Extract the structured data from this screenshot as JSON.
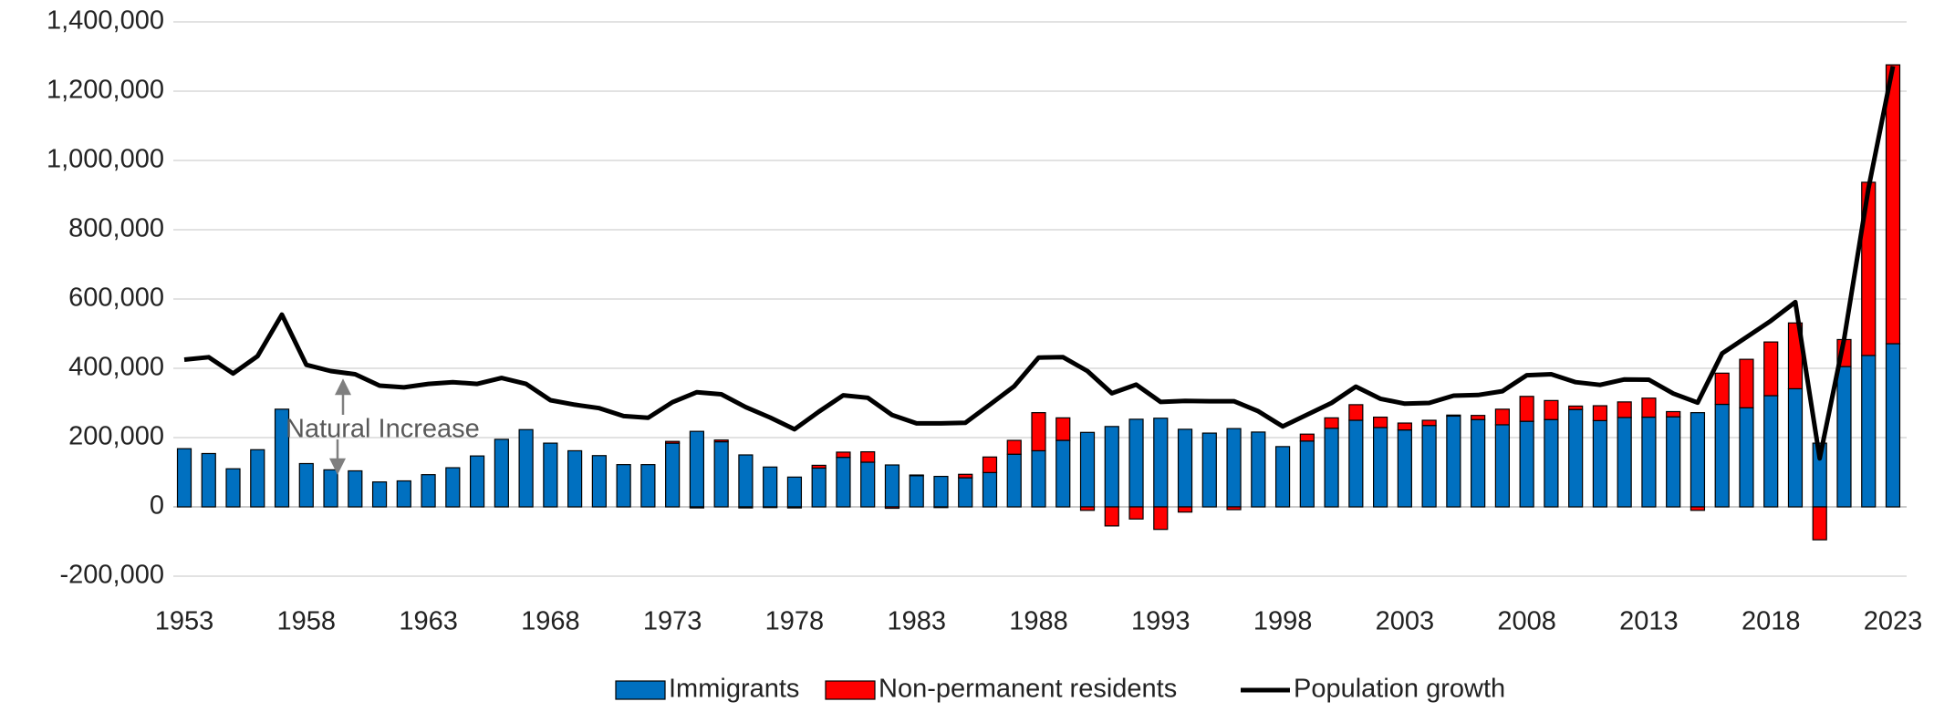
{
  "chart_data": {
    "type": "bar_line",
    "annotation": "Natural Increase",
    "x": [
      1953,
      1954,
      1955,
      1956,
      1957,
      1958,
      1959,
      1960,
      1961,
      1962,
      1963,
      1964,
      1965,
      1966,
      1967,
      1968,
      1969,
      1970,
      1971,
      1972,
      1973,
      1974,
      1975,
      1976,
      1977,
      1978,
      1979,
      1980,
      1981,
      1982,
      1983,
      1984,
      1985,
      1986,
      1987,
      1988,
      1989,
      1990,
      1991,
      1992,
      1993,
      1994,
      1995,
      1996,
      1997,
      1998,
      1999,
      2000,
      2001,
      2002,
      2003,
      2004,
      2005,
      2006,
      2007,
      2008,
      2009,
      2010,
      2011,
      2012,
      2013,
      2014,
      2015,
      2016,
      2017,
      2018,
      2019,
      2020,
      2021,
      2022,
      2023
    ],
    "xlim": [
      1953,
      2023
    ],
    "xticks": [
      1953,
      1958,
      1963,
      1968,
      1973,
      1978,
      1983,
      1988,
      1993,
      1998,
      2003,
      2008,
      2013,
      2018,
      2023
    ],
    "ylim": [
      -200000,
      1400000
    ],
    "yticks": [
      {
        "value": -200000,
        "label": "-200,000"
      },
      0,
      {
        "value": 200000,
        "label": "200,000"
      },
      {
        "value": 400000,
        "label": "400,000"
      },
      {
        "value": 600000,
        "label": "600,000"
      },
      {
        "value": 800000,
        "label": "800,000"
      },
      {
        "value": 1000000,
        "label": "1,000,000"
      },
      {
        "value": 1200000,
        "label": "1,200,000"
      },
      {
        "value": 1400000,
        "label": "1,400,000"
      }
    ],
    "grid": true,
    "legend": "bottom",
    "series": [
      {
        "name": "Immigrants",
        "color": "#0070c0",
        "kind": "bar",
        "values": [
          168000,
          154000,
          110000,
          165000,
          282000,
          125000,
          107000,
          104000,
          72000,
          75000,
          93000,
          113000,
          147000,
          195000,
          223000,
          184000,
          162000,
          148000,
          122000,
          122000,
          184000,
          218000,
          188000,
          150000,
          115000,
          86000,
          112000,
          143000,
          129000,
          121000,
          90000,
          88000,
          84000,
          99000,
          152000,
          162000,
          192000,
          215000,
          232000,
          253000,
          256000,
          224000,
          213000,
          226000,
          216000,
          174000,
          190000,
          227000,
          250000,
          229000,
          222000,
          235000,
          262000,
          252000,
          237000,
          247000,
          252000,
          281000,
          249000,
          258000,
          259000,
          260000,
          272000,
          296000,
          286000,
          321000,
          341000,
          184000,
          405000,
          437000,
          471000
        ]
      },
      {
        "name": "Non-permanent residents",
        "color": "#ff0000",
        "kind": "bar",
        "values": [
          0,
          0,
          0,
          0,
          0,
          0,
          0,
          0,
          0,
          0,
          0,
          0,
          0,
          0,
          0,
          0,
          0,
          0,
          0,
          0,
          5000,
          -3000,
          5000,
          -3000,
          -2000,
          -3000,
          8000,
          15000,
          30000,
          -4000,
          2000,
          -2000,
          10000,
          45000,
          40000,
          110000,
          65000,
          -10000,
          -55000,
          -35000,
          -65000,
          -15000,
          0,
          -8000,
          0,
          0,
          20000,
          30000,
          45000,
          30000,
          20000,
          15000,
          3000,
          12000,
          45000,
          72000,
          55000,
          10000,
          43000,
          45000,
          55000,
          15000,
          -10000,
          90000,
          140000,
          155000,
          190000,
          -95000,
          78000,
          500000,
          805000
        ]
      },
      {
        "name": "Population growth",
        "color": "#000000",
        "kind": "line",
        "values": [
          425000,
          432000,
          385000,
          435000,
          555000,
          410000,
          392000,
          383000,
          350000,
          345000,
          355000,
          360000,
          355000,
          372000,
          355000,
          308000,
          295000,
          285000,
          262000,
          257000,
          302000,
          331000,
          325000,
          288000,
          258000,
          224000,
          275000,
          322000,
          315000,
          265000,
          241000,
          241000,
          243000,
          295000,
          348000,
          431000,
          432000,
          392000,
          328000,
          353000,
          303000,
          306000,
          305000,
          305000,
          276000,
          232000,
          266000,
          300000,
          347000,
          312000,
          298000,
          300000,
          321000,
          323000,
          334000,
          380000,
          383000,
          360000,
          352000,
          368000,
          367000,
          327000,
          301000,
          443000,
          490000,
          537000,
          591000,
          140000,
          485000,
          920000,
          1272000
        ]
      }
    ]
  }
}
